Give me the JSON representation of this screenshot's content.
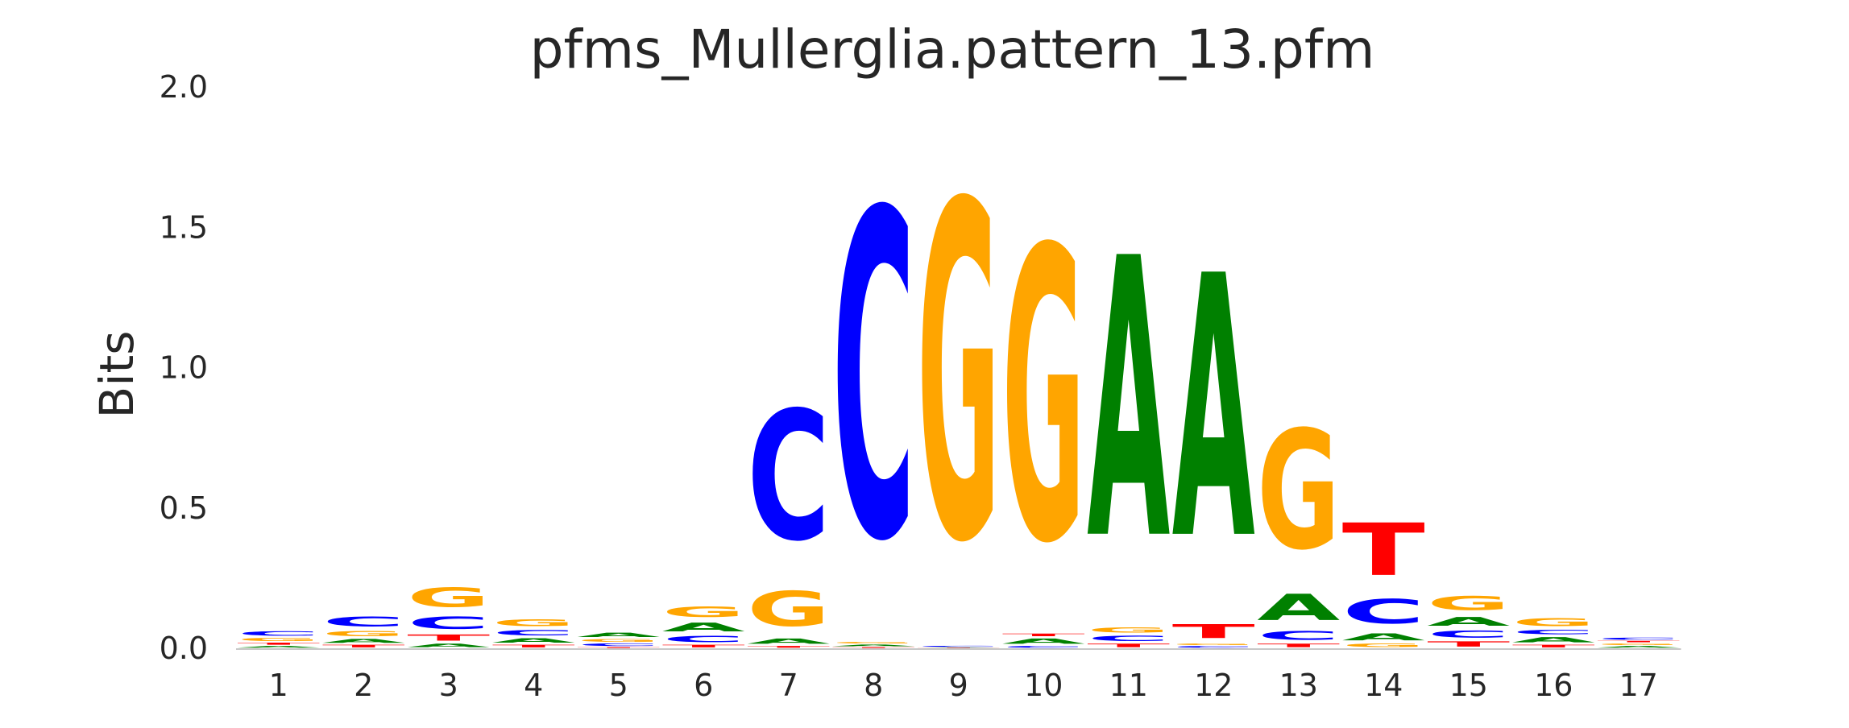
{
  "chart_data": {
    "type": "sequence-logo",
    "title": "pfms_Mullerglia.pattern_13.pfm",
    "xlabel": "",
    "ylabel": "Bits",
    "ylim": [
      0,
      2.0
    ],
    "yticks": [
      "0.0",
      "0.5",
      "1.0",
      "1.5",
      "2.0"
    ],
    "grid": false,
    "letter_colors": {
      "A": "#008000",
      "C": "#0000ff",
      "G": "#ffa500",
      "T": "#ff0000"
    },
    "positions": [
      {
        "pos": "1",
        "stack": [
          [
            "A",
            0.01
          ],
          [
            "T",
            0.012
          ],
          [
            "G",
            0.018
          ],
          [
            "C",
            0.025
          ]
        ]
      },
      {
        "pos": "2",
        "stack": [
          [
            "T",
            0.015
          ],
          [
            "A",
            0.022
          ],
          [
            "G",
            0.03
          ],
          [
            "C",
            0.055
          ]
        ]
      },
      {
        "pos": "3",
        "stack": [
          [
            "A",
            0.02
          ],
          [
            "T",
            0.035
          ],
          [
            "C",
            0.07
          ],
          [
            "G",
            0.11
          ]
        ]
      },
      {
        "pos": "4",
        "stack": [
          [
            "T",
            0.015
          ],
          [
            "A",
            0.025
          ],
          [
            "C",
            0.03
          ],
          [
            "G",
            0.04
          ]
        ]
      },
      {
        "pos": "5",
        "stack": [
          [
            "T",
            0.005
          ],
          [
            "C",
            0.015
          ],
          [
            "G",
            0.015
          ],
          [
            "A",
            0.025
          ]
        ]
      },
      {
        "pos": "6",
        "stack": [
          [
            "T",
            0.015
          ],
          [
            "C",
            0.035
          ],
          [
            "A",
            0.05
          ],
          [
            "G",
            0.06
          ]
        ]
      },
      {
        "pos": "7",
        "stack": [
          [
            "T",
            0.01
          ],
          [
            "A",
            0.03
          ],
          [
            "G",
            0.2
          ],
          [
            "C",
            0.74
          ]
        ]
      },
      {
        "pos": "8",
        "stack": [
          [
            "T",
            0.005
          ],
          [
            "A",
            0.01
          ],
          [
            "G",
            0.01
          ],
          [
            "C",
            1.865
          ]
        ]
      },
      {
        "pos": "9",
        "stack": [
          [
            "T",
            0.002
          ],
          [
            "A",
            0.002
          ],
          [
            "C",
            0.006
          ],
          [
            "G",
            1.92
          ]
        ]
      },
      {
        "pos": "10",
        "stack": [
          [
            "C",
            0.01
          ],
          [
            "A",
            0.03
          ],
          [
            "T",
            0.015
          ],
          [
            "G",
            1.67
          ]
        ]
      },
      {
        "pos": "11",
        "stack": [
          [
            "T",
            0.02
          ],
          [
            "C",
            0.03
          ],
          [
            "G",
            0.03
          ],
          [
            "A",
            1.6
          ]
        ]
      },
      {
        "pos": "12",
        "stack": [
          [
            "C",
            0.01
          ],
          [
            "G",
            0.01
          ],
          [
            "T",
            0.08
          ],
          [
            "A",
            1.5
          ]
        ]
      },
      {
        "pos": "13",
        "stack": [
          [
            "T",
            0.02
          ],
          [
            "C",
            0.05
          ],
          [
            "A",
            0.15
          ],
          [
            "G",
            0.68
          ]
        ]
      },
      {
        "pos": "14",
        "stack": [
          [
            "G",
            0.02
          ],
          [
            "A",
            0.04
          ],
          [
            "C",
            0.14
          ],
          [
            "T",
            0.3
          ]
        ]
      },
      {
        "pos": "15",
        "stack": [
          [
            "T",
            0.03
          ],
          [
            "C",
            0.04
          ],
          [
            "A",
            0.05
          ],
          [
            "G",
            0.08
          ]
        ]
      },
      {
        "pos": "16",
        "stack": [
          [
            "T",
            0.015
          ],
          [
            "A",
            0.03
          ],
          [
            "C",
            0.025
          ],
          [
            "G",
            0.045
          ]
        ]
      },
      {
        "pos": "17",
        "stack": [
          [
            "A",
            0.01
          ],
          [
            "G",
            0.01
          ],
          [
            "T",
            0.008
          ],
          [
            "C",
            0.012
          ]
        ]
      }
    ]
  }
}
